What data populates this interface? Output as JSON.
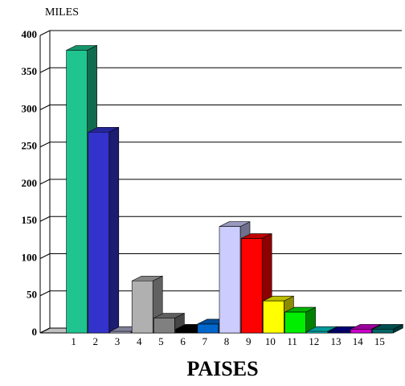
{
  "chart_data": {
    "type": "bar3d",
    "y_label": "MILES",
    "x_label": "PAISES",
    "categories": [
      "1",
      "2",
      "3",
      "4",
      "5",
      "6",
      "7",
      "8",
      "9",
      "10",
      "11",
      "12",
      "13",
      "14",
      "15"
    ],
    "values": [
      380,
      270,
      2,
      70,
      20,
      5,
      12,
      143,
      127,
      43,
      28,
      2,
      2,
      5,
      5
    ],
    "colors": [
      "#1fc48e",
      "#3333cc",
      "#aaaacc",
      "#b0b0b0",
      "#808080",
      "#000000",
      "#0066cc",
      "#ccccff",
      "#ff0000",
      "#ffff00",
      "#00ee00",
      "#00cccc",
      "#000099",
      "#cc00cc",
      "#006666"
    ],
    "ylim": [
      0,
      400
    ],
    "yticks": [
      0,
      50,
      100,
      150,
      200,
      250,
      300,
      350,
      400
    ],
    "grid": true
  }
}
